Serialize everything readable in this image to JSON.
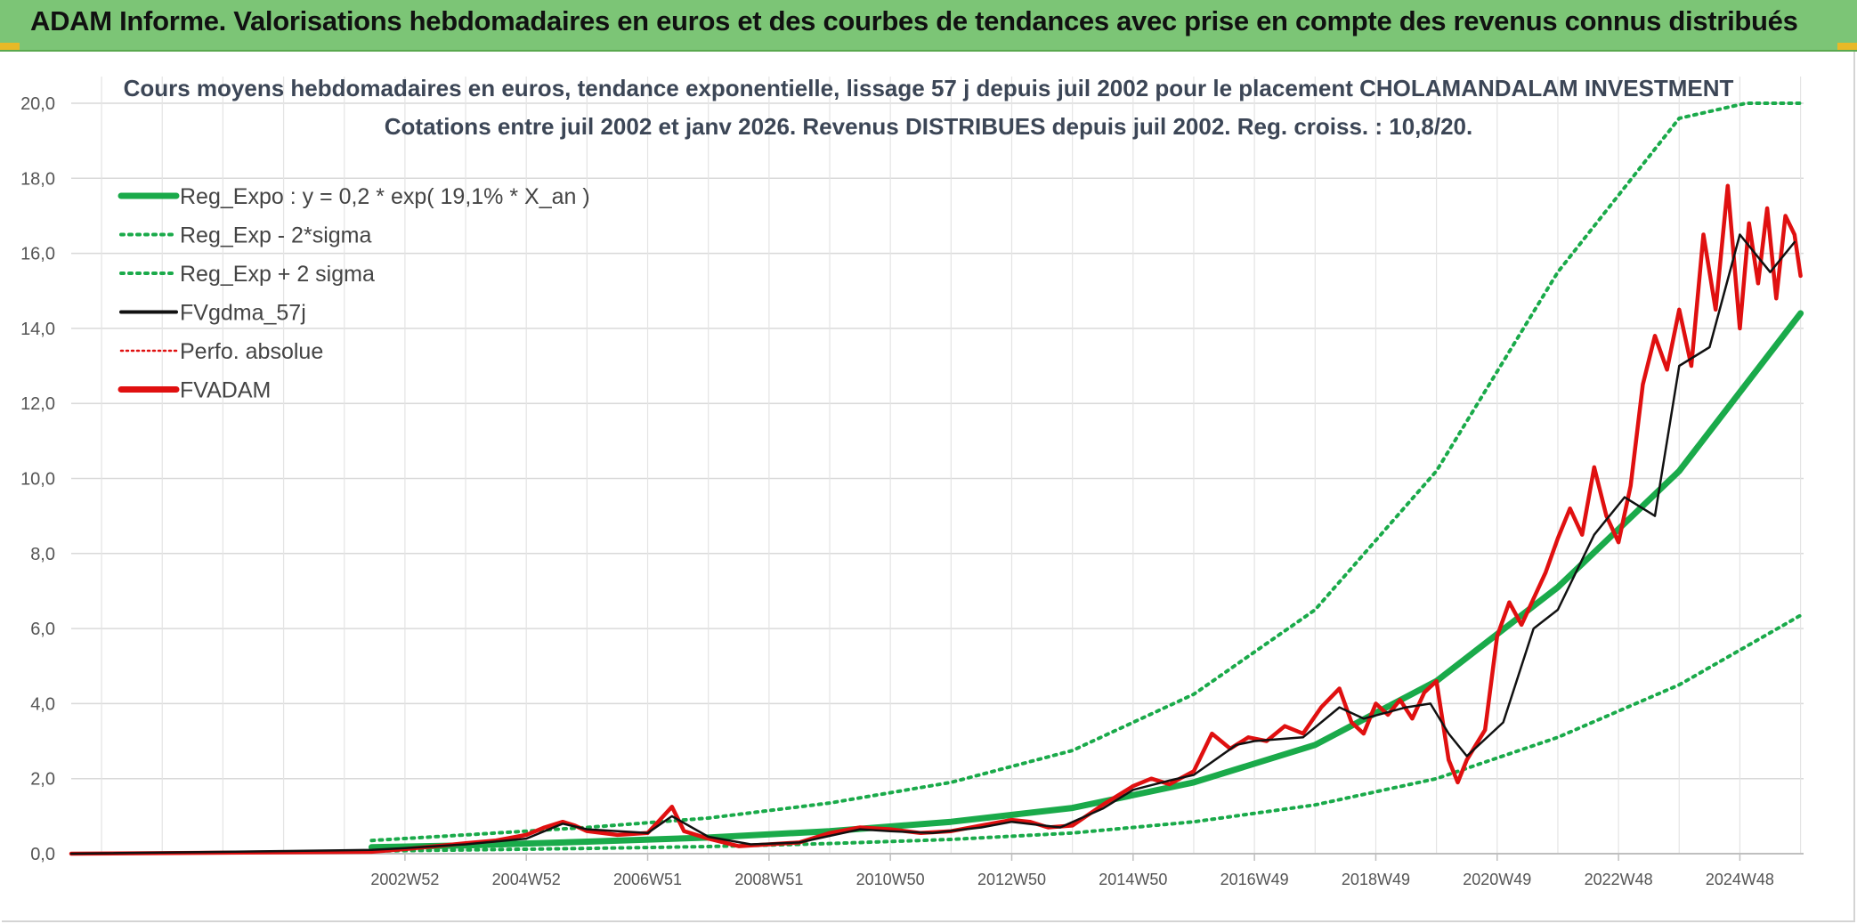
{
  "banner": {
    "title": "ADAM Informe. Valorisations hebdomadaires en euros et des courbes de tendances avec prise en compte des revenus connus distribués"
  },
  "chart_data": {
    "type": "line",
    "title": "Cours moyens hebdomadaires en euros, tendance exponentielle, lissage 57 j depuis juil 2002 pour le placement CHOLAMANDALAM INVESTMENT",
    "subtitle": "Cotations entre juil 2002 et janv 2026. Revenus DISTRIBUES depuis juil 2002. Reg. croiss. : 10,8/20.",
    "xlabel": "",
    "ylabel": "",
    "ylim": [
      0,
      20
    ],
    "yticks": [
      "0,0",
      "2,0",
      "4,0",
      "6,0",
      "8,0",
      "10,0",
      "12,0",
      "14,0",
      "16,0",
      "18,0",
      "20,0"
    ],
    "xlim": [
      1997.5,
      2026.05
    ],
    "x_ticks": [
      {
        "x": 2003.0,
        "label": "2002W52"
      },
      {
        "x": 2005.0,
        "label": "2004W52"
      },
      {
        "x": 2007.0,
        "label": "2006W51"
      },
      {
        "x": 2009.0,
        "label": "2008W51"
      },
      {
        "x": 2011.0,
        "label": "2010W50"
      },
      {
        "x": 2013.0,
        "label": "2012W50"
      },
      {
        "x": 2015.0,
        "label": "2014W50"
      },
      {
        "x": 2017.0,
        "label": "2016W49"
      },
      {
        "x": 2019.0,
        "label": "2018W49"
      },
      {
        "x": 2021.0,
        "label": "2020W49"
      },
      {
        "x": 2023.0,
        "label": "2022W48"
      },
      {
        "x": 2025.0,
        "label": "2024W48"
      }
    ],
    "legend": [
      {
        "key": "reg",
        "label": "Reg_Expo : y = 0,2 * exp( 19,1% *  X_an )",
        "color": "#1aaa4a",
        "style": "solid-thick"
      },
      {
        "key": "low",
        "label": "Reg_Exp - 2*sigma",
        "color": "#1aaa4a",
        "style": "dotted"
      },
      {
        "key": "high",
        "label": "Reg_Exp + 2 sigma",
        "color": "#1aaa4a",
        "style": "dotted"
      },
      {
        "key": "ma",
        "label": "FVgdma_57j",
        "color": "#111111",
        "style": "solid"
      },
      {
        "key": "perf",
        "label": "Perfo. absolue",
        "color": "#e01010",
        "style": "dotted"
      },
      {
        "key": "adam",
        "label": "FVADAM",
        "color": "#e01010",
        "style": "solid-thick"
      }
    ],
    "legend_position": "top-left",
    "grid": true,
    "series": [
      {
        "name": "Reg_Expo",
        "color": "#1aaa4a",
        "x": [
          2002.45,
          2004,
          2006,
          2008,
          2010,
          2012,
          2014,
          2016,
          2018,
          2020,
          2022,
          2024,
          2026
        ],
        "y": [
          0.17,
          0.22,
          0.32,
          0.43,
          0.6,
          0.85,
          1.22,
          1.9,
          2.9,
          4.6,
          7.1,
          10.2,
          14.4
        ]
      },
      {
        "name": "Reg_Exp - 2*sigma",
        "color": "#1aaa4a",
        "x": [
          2002.45,
          2004,
          2006,
          2008,
          2010,
          2012,
          2014,
          2016,
          2018,
          2020,
          2022,
          2024,
          2026
        ],
        "y": [
          0.07,
          0.1,
          0.14,
          0.19,
          0.27,
          0.38,
          0.55,
          0.85,
          1.3,
          2.0,
          3.1,
          4.5,
          6.35
        ]
      },
      {
        "name": "Reg_Exp + 2 sigma",
        "color": "#1aaa4a",
        "x": [
          2002.45,
          2004,
          2006,
          2008,
          2010,
          2012,
          2014,
          2016,
          2018,
          2020,
          2022,
          2024,
          2025.1,
          2025.2,
          2026
        ],
        "y": [
          0.35,
          0.5,
          0.7,
          0.95,
          1.35,
          1.9,
          2.75,
          4.25,
          6.5,
          10.2,
          15.5,
          19.6,
          20.0,
          20.0,
          20.0
        ]
      },
      {
        "name": "FVgdma_57j",
        "color": "#111111",
        "x": [
          1997.5,
          2002.45,
          2003,
          2004,
          2005,
          2005.6,
          2006,
          2007,
          2007.4,
          2008,
          2008.7,
          2009.5,
          2010.5,
          2011,
          2011.7,
          2012.5,
          2013,
          2013.8,
          2014.5,
          2015,
          2015.6,
          2016,
          2016.7,
          2017,
          2017.8,
          2018.4,
          2018.8,
          2019.5,
          2019.9,
          2020.2,
          2020.5,
          2021.1,
          2021.6,
          2022,
          2022.6,
          2023.1,
          2023.6,
          2024,
          2024.5,
          2025,
          2025.5,
          2025.9
        ],
        "y": [
          0.0,
          0.1,
          0.15,
          0.25,
          0.4,
          0.8,
          0.65,
          0.55,
          1.0,
          0.45,
          0.25,
          0.3,
          0.65,
          0.6,
          0.55,
          0.7,
          0.85,
          0.7,
          1.2,
          1.7,
          1.95,
          2.1,
          2.9,
          3.0,
          3.1,
          3.9,
          3.6,
          3.9,
          4.0,
          3.2,
          2.6,
          3.5,
          6.0,
          6.5,
          8.5,
          9.5,
          9.0,
          13.0,
          13.5,
          16.5,
          15.5,
          16.3
        ]
      },
      {
        "name": "FVADAM",
        "color": "#e01010",
        "x": [
          1997.5,
          2002.45,
          2003,
          2003.5,
          2004,
          2004.5,
          2005,
          2005.3,
          2005.6,
          2005.8,
          2006,
          2006.5,
          2007,
          2007.2,
          2007.4,
          2007.6,
          2008,
          2008.5,
          2009,
          2009.5,
          2010,
          2010.5,
          2011,
          2011.5,
          2012,
          2012.5,
          2013,
          2013.3,
          2013.6,
          2014,
          2014.5,
          2015,
          2015.3,
          2015.6,
          2016,
          2016.3,
          2016.6,
          2016.9,
          2017.2,
          2017.5,
          2017.8,
          2018.1,
          2018.4,
          2018.6,
          2018.8,
          2019,
          2019.2,
          2019.4,
          2019.6,
          2019.8,
          2020,
          2020.2,
          2020.35,
          2020.5,
          2020.65,
          2020.8,
          2021,
          2021.2,
          2021.4,
          2021.6,
          2021.8,
          2022,
          2022.2,
          2022.4,
          2022.6,
          2022.8,
          2023,
          2023.2,
          2023.4,
          2023.6,
          2023.8,
          2024,
          2024.2,
          2024.4,
          2024.6,
          2024.8,
          2025,
          2025.15,
          2025.3,
          2025.45,
          2025.6,
          2025.75,
          2025.9,
          2026.0
        ],
        "y": [
          0.0,
          0.05,
          0.12,
          0.2,
          0.28,
          0.35,
          0.5,
          0.7,
          0.85,
          0.75,
          0.6,
          0.5,
          0.55,
          0.9,
          1.25,
          0.6,
          0.4,
          0.2,
          0.25,
          0.3,
          0.55,
          0.7,
          0.65,
          0.55,
          0.6,
          0.75,
          0.9,
          0.85,
          0.7,
          0.75,
          1.3,
          1.8,
          2.0,
          1.85,
          2.2,
          3.2,
          2.8,
          3.1,
          3.0,
          3.4,
          3.2,
          3.9,
          4.4,
          3.5,
          3.2,
          4.0,
          3.7,
          4.1,
          3.6,
          4.3,
          4.6,
          2.5,
          1.9,
          2.5,
          2.9,
          3.3,
          5.8,
          6.7,
          6.1,
          6.8,
          7.5,
          8.4,
          9.2,
          8.5,
          10.3,
          9.0,
          8.3,
          9.8,
          12.5,
          13.8,
          12.9,
          14.5,
          13.0,
          16.5,
          14.5,
          17.8,
          14.0,
          16.8,
          15.2,
          17.2,
          14.8,
          17.0,
          16.5,
          15.4
        ]
      }
    ]
  }
}
